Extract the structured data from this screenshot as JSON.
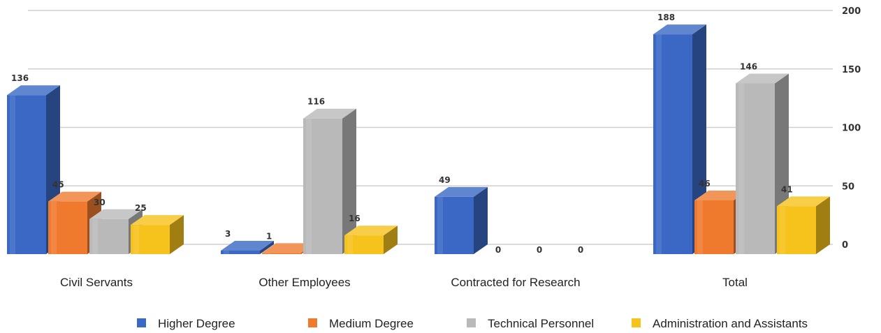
{
  "chart_data": {
    "type": "bar",
    "style": "3d-clustered-column",
    "categories": [
      "Civil Servants",
      "Other Employees",
      "Contracted for Research",
      "Total"
    ],
    "series": [
      {
        "name": "Higher Degree",
        "color": "#3a68c4",
        "values": [
          136,
          3,
          49,
          188
        ]
      },
      {
        "name": "Medium Degree",
        "color": "#ef7a2e",
        "values": [
          45,
          1,
          0,
          46
        ]
      },
      {
        "name": "Technical Personnel",
        "color": "#b9b9b9",
        "values": [
          30,
          116,
          0,
          146
        ]
      },
      {
        "name": "Administration and Assistants",
        "color": "#f6c21c",
        "values": [
          25,
          16,
          0,
          41
        ]
      }
    ],
    "data_labels": [
      [
        "136",
        "45",
        "30",
        "25"
      ],
      [
        "3",
        "1",
        "116",
        "16"
      ],
      [
        "49",
        "0",
        "0",
        "0"
      ],
      [
        "188",
        "46",
        "146",
        "41"
      ]
    ],
    "y_ticks": [
      0,
      50,
      100,
      150,
      200
    ],
    "ylim": [
      0,
      200
    ],
    "y_axis_side": "right",
    "grid": true,
    "legend_position": "bottom"
  }
}
